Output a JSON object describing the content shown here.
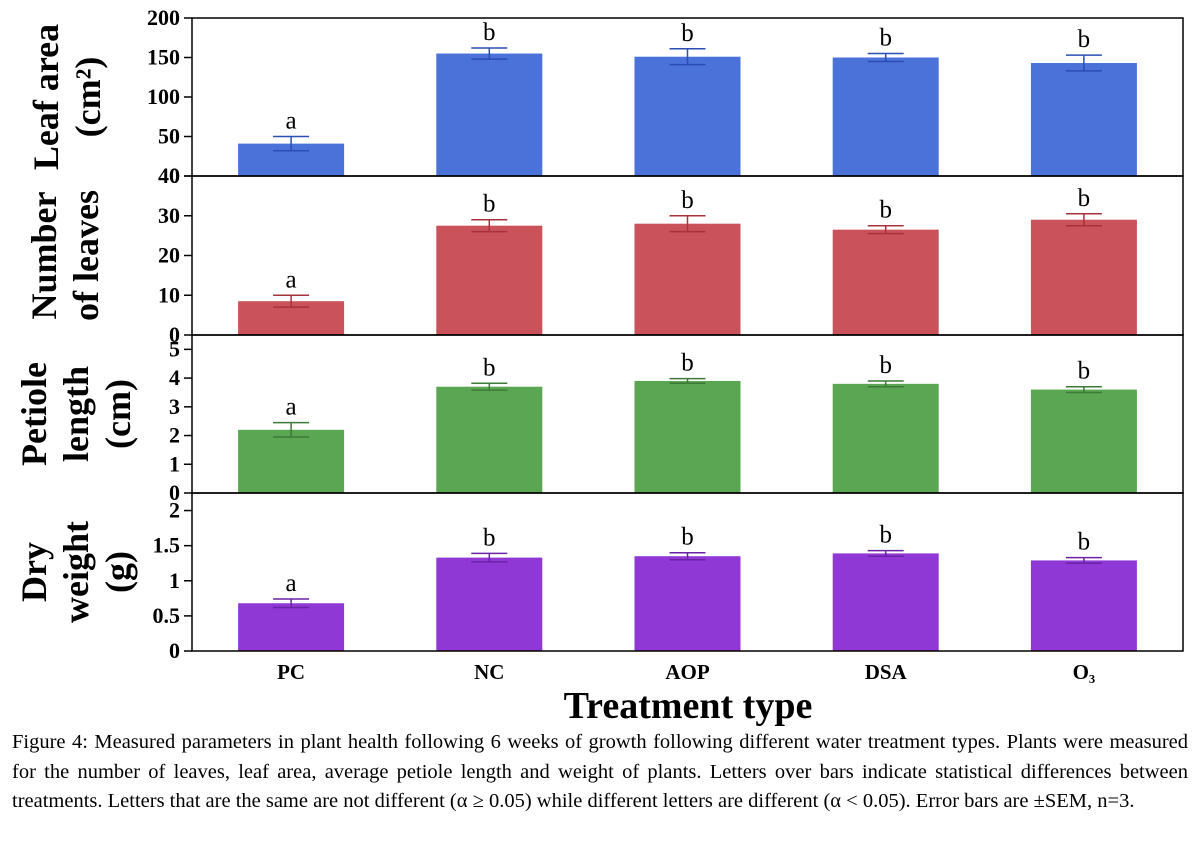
{
  "chart_data": {
    "type": "bar",
    "xlabel": "Treatment type",
    "categories": [
      "PC",
      "NC",
      "AOP",
      "DSA",
      "O₃"
    ],
    "panels": [
      {
        "ylabel_lines": [
          "Leaf area",
          "(cm²)"
        ],
        "ylim": [
          0,
          200
        ],
        "ticks": [
          0,
          50,
          100,
          150,
          200
        ],
        "tick_labels": [
          "0",
          "50",
          "100",
          "150",
          "200"
        ],
        "color": "#4a72d8",
        "values": [
          41,
          155,
          151,
          150,
          143
        ],
        "errors": [
          9,
          7,
          10,
          5,
          10
        ],
        "letters": [
          "a",
          "b",
          "b",
          "b",
          "b"
        ]
      },
      {
        "ylabel_lines": [
          "Number",
          "of leaves"
        ],
        "ylim": [
          0,
          40
        ],
        "ticks": [
          0,
          10,
          20,
          30,
          40
        ],
        "tick_labels": [
          "0",
          "10",
          "20",
          "30",
          "40"
        ],
        "color": "#c9525b",
        "values": [
          8.5,
          27.5,
          28,
          26.5,
          29
        ],
        "errors": [
          1.5,
          1.5,
          2,
          1,
          1.5
        ],
        "letters": [
          "a",
          "b",
          "b",
          "b",
          "b"
        ]
      },
      {
        "ylabel_lines": [
          "Petiole",
          "length",
          "(cm)"
        ],
        "ylim": [
          0,
          5.5
        ],
        "ticks": [
          0,
          1,
          2,
          3,
          4,
          5
        ],
        "tick_labels": [
          "0",
          "1",
          "2",
          "3",
          "4",
          "5"
        ],
        "color": "#5aa652",
        "values": [
          2.2,
          3.7,
          3.9,
          3.8,
          3.6
        ],
        "errors": [
          0.25,
          0.12,
          0.08,
          0.1,
          0.1
        ],
        "letters": [
          "a",
          "b",
          "b",
          "b",
          "b"
        ]
      },
      {
        "ylabel_lines": [
          "Dry",
          "weight",
          "(g)"
        ],
        "ylim": [
          0,
          2.25
        ],
        "ticks": [
          0,
          0.5,
          1,
          1.5,
          2
        ],
        "tick_labels": [
          "0",
          "0.5",
          "1",
          "1.5",
          "2"
        ],
        "color": "#9038d6",
        "values": [
          0.68,
          1.33,
          1.35,
          1.39,
          1.29
        ],
        "errors": [
          0.06,
          0.06,
          0.05,
          0.04,
          0.04
        ],
        "letters": [
          "a",
          "b",
          "b",
          "b",
          "b"
        ]
      }
    ]
  },
  "caption": "Figure 4: Measured parameters in plant health following 6 weeks of growth following different water treatment types. Plants were measured for the number of leaves, leaf area, average petiole length and weight of plants. Letters over bars indicate statistical differences between treatments.  Letters that are the same are not different (α ≥ 0.05) while different letters are different (α < 0.05). Error bars are ±SEM, n=3."
}
